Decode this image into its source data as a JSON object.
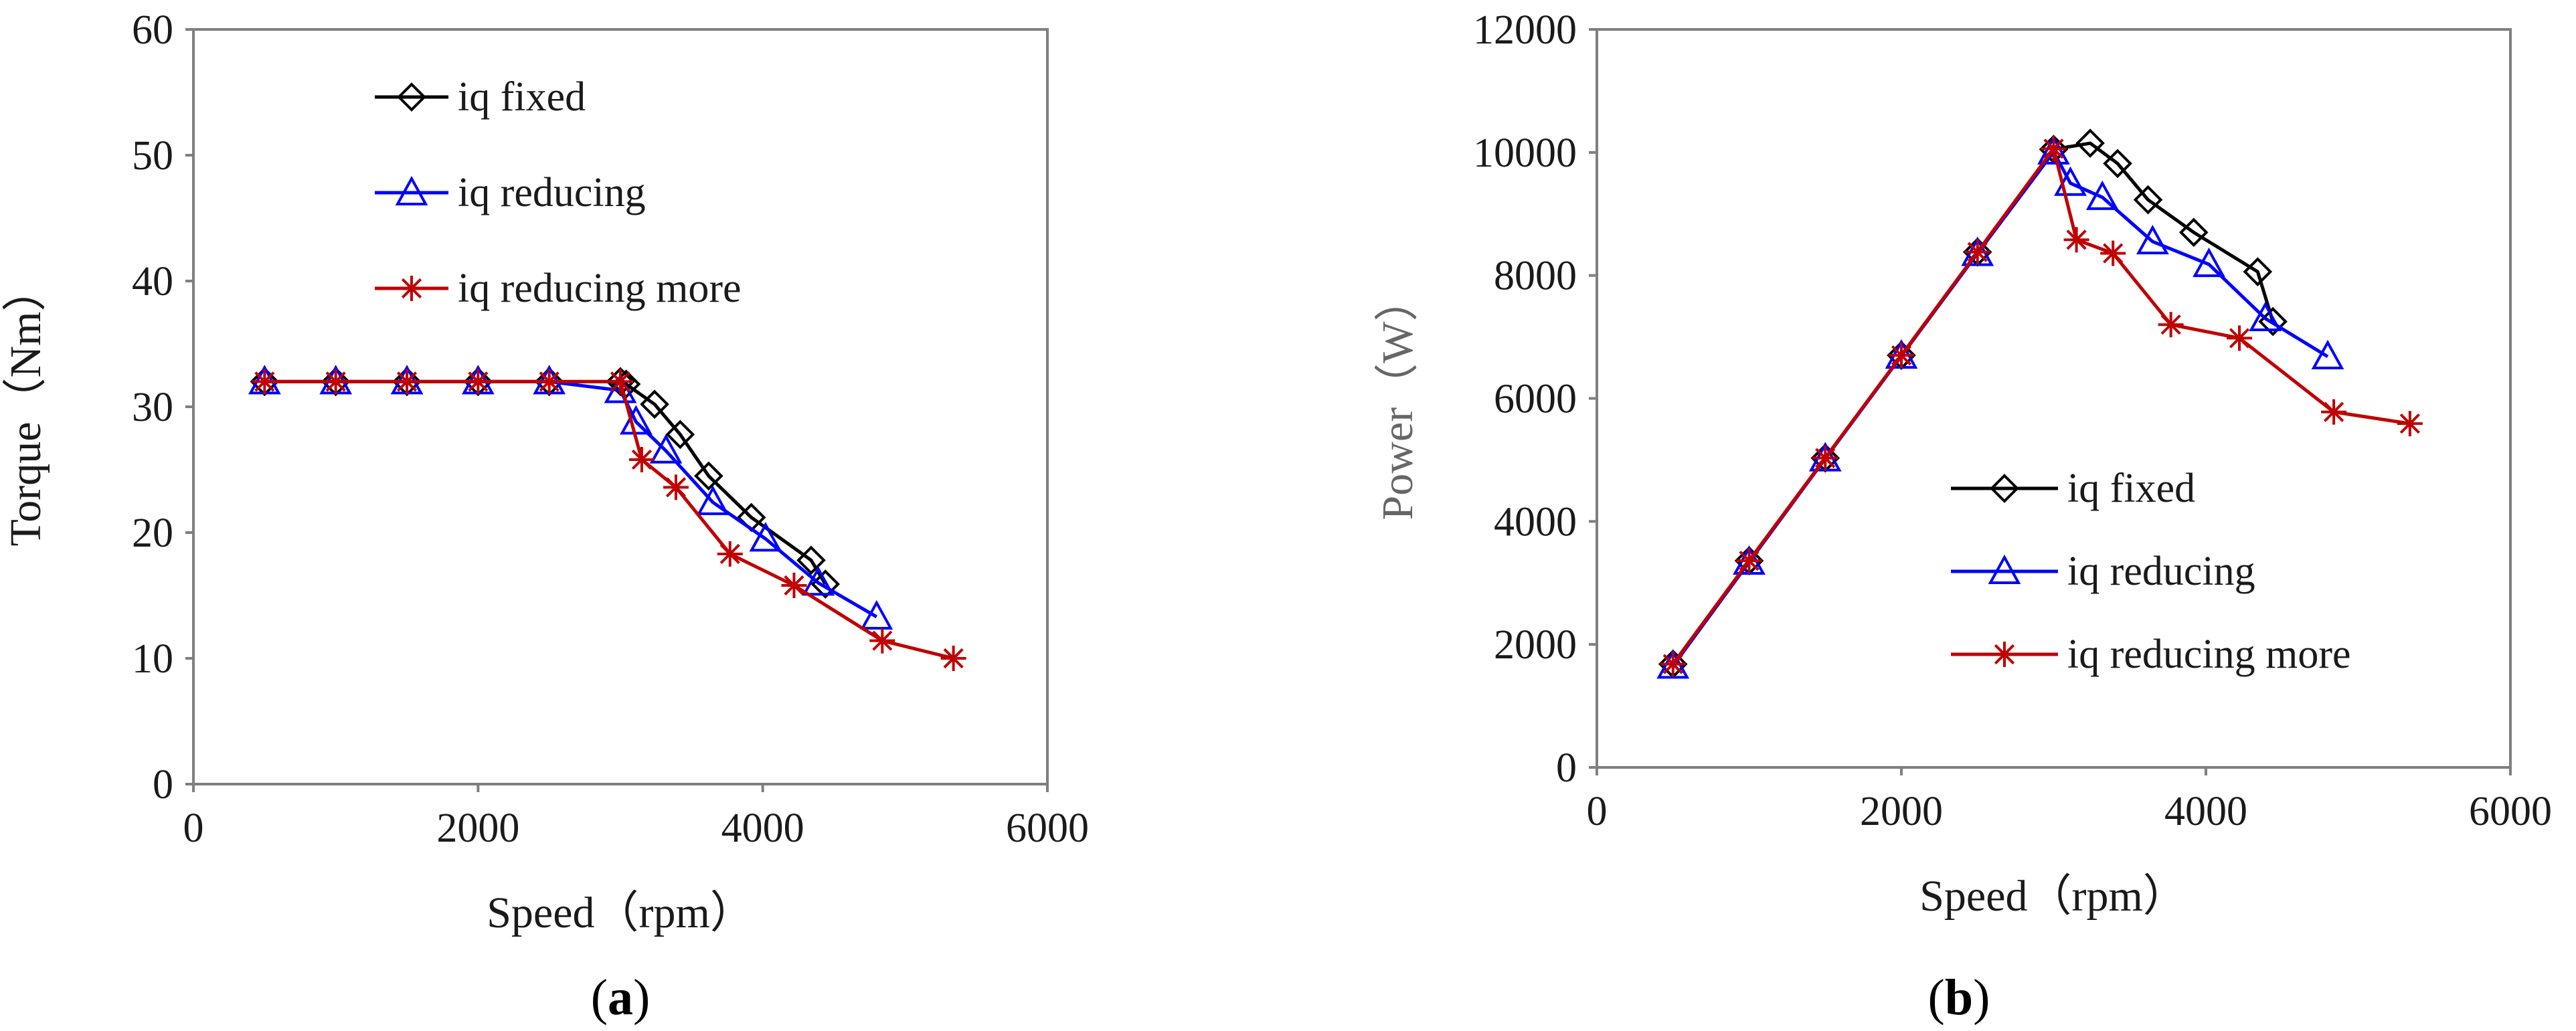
{
  "chart_data": [
    {
      "type": "line",
      "panel_label": {
        "open": "(",
        "letter": "a",
        "close": ")"
      },
      "xlabel": "Speed（rpm）",
      "ylabel": "Torque（Nm）",
      "xlim": [
        0,
        6000
      ],
      "ylim": [
        0,
        60
      ],
      "xticks": [
        0,
        2000,
        4000,
        6000
      ],
      "yticks": [
        0,
        10,
        20,
        30,
        40,
        50,
        60
      ],
      "grid": false,
      "legend_position": "top-center",
      "series": [
        {
          "name": "iq fixed",
          "color": "#000000",
          "marker": "diamond",
          "x": [
            500,
            1000,
            1500,
            2000,
            2500,
            3000,
            3040,
            3240,
            3420,
            3620,
            3920,
            4340,
            4440
          ],
          "y": [
            32,
            32,
            32,
            32,
            32,
            32,
            31.8,
            30.2,
            27.8,
            24.5,
            21.2,
            17.8,
            15.9
          ]
        },
        {
          "name": "iq reducing",
          "color": "#0000ff",
          "marker": "triangle",
          "x": [
            500,
            1000,
            1500,
            2000,
            2500,
            3000,
            3110,
            3320,
            3650,
            4020,
            4390,
            4800
          ],
          "y": [
            32,
            32,
            32,
            32,
            32,
            31.3,
            28.8,
            26.5,
            22.4,
            19.5,
            16.0,
            13.3
          ]
        },
        {
          "name": "iq reducing more",
          "color": "#c00000",
          "marker": "asterisk",
          "x": [
            500,
            1000,
            1500,
            2000,
            2500,
            3000,
            3150,
            3390,
            3770,
            4220,
            4840,
            5340
          ],
          "y": [
            32,
            32,
            32,
            32,
            32,
            32,
            25.8,
            23.6,
            18.3,
            15.8,
            11.4,
            10.0
          ]
        }
      ]
    },
    {
      "type": "line",
      "panel_label": {
        "open": "(",
        "letter": "b",
        "close": ")"
      },
      "xlabel": "Speed（rpm）",
      "ylabel": "Power（W）",
      "xlim": [
        0,
        6000
      ],
      "ylim": [
        0,
        12000
      ],
      "xticks": [
        0,
        2000,
        4000,
        6000
      ],
      "yticks": [
        0,
        2000,
        4000,
        6000,
        8000,
        10000,
        12000
      ],
      "grid": false,
      "legend_position": "center-right",
      "series": [
        {
          "name": "iq fixed",
          "color": "#000000",
          "marker": "diamond",
          "x": [
            500,
            1000,
            1500,
            2000,
            2500,
            3000,
            3240,
            3420,
            3620,
            3920,
            4340,
            4440
          ],
          "y": [
            1680,
            3360,
            5030,
            6700,
            8380,
            10050,
            10150,
            9820,
            9230,
            8700,
            8060,
            7250
          ]
        },
        {
          "name": "iq reducing",
          "color": "#0000ff",
          "marker": "triangle",
          "x": [
            500,
            1000,
            1500,
            2000,
            2500,
            3000,
            3110,
            3320,
            3650,
            4020,
            4390,
            4800
          ],
          "y": [
            1650,
            3340,
            5020,
            6690,
            8360,
            10010,
            9500,
            9270,
            8550,
            8180,
            7300,
            6680
          ]
        },
        {
          "name": "iq reducing more",
          "color": "#c00000",
          "marker": "asterisk",
          "x": [
            500,
            1000,
            1500,
            2000,
            2500,
            3000,
            3150,
            3390,
            3770,
            4220,
            4840,
            5340
          ],
          "y": [
            1680,
            3360,
            5030,
            6700,
            8380,
            10060,
            8580,
            8360,
            7200,
            6980,
            5780,
            5590
          ]
        }
      ]
    }
  ]
}
